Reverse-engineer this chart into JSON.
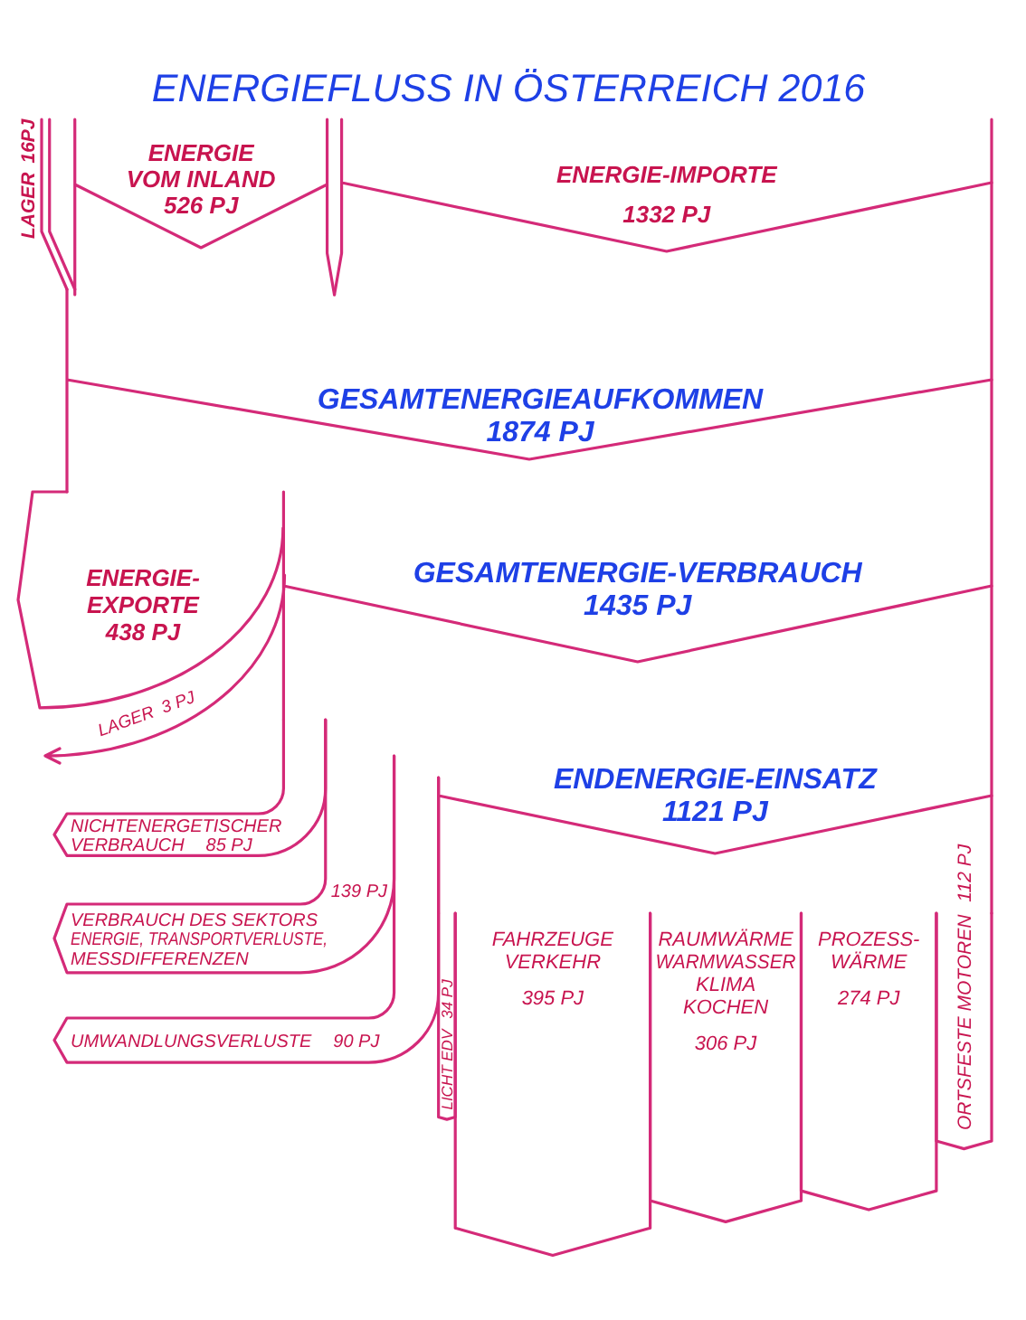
{
  "chart_data": {
    "type": "other",
    "title": "ENERGIEFLUSS IN ÖSTERREICH 2016",
    "categories": [
      "LAGER",
      "ENERGIE VOM INLAND",
      "ENERGIE-IMPORTE",
      "GESAMTENERGIEAUFKOMMEN",
      "ENERGIE-EXPORTE",
      "LAGER",
      "GESAMTENERGIE-VERBRAUCH",
      "NICHTENERGETISCHER VERBRAUCH",
      "VERBRAUCH DES SEKTORS ENERGIE, TRANSPORTVERLUSTE, MESSDIFFERENZEN",
      "UMWANDLUNGSVERLUSTE",
      "ENDENERGIE-EINSATZ",
      "LICHT EDV",
      "FAHRZEUGE VERKEHR",
      "RAUMWÄRME WARMWASSER KLIMA KOCHEN",
      "PROZESS-WÄRME",
      "ORTSFESTE MOTOREN"
    ],
    "values": [
      16,
      526,
      1332,
      1874,
      438,
      3,
      1435,
      85,
      139,
      90,
      1121,
      34,
      395,
      306,
      274,
      112
    ],
    "value_labels": [
      "16PJ",
      "526 PJ",
      "1332 PJ",
      "1874 PJ",
      "438 PJ",
      "3 PJ",
      "1435 PJ",
      "85 PJ",
      "139 PJ",
      "90 PJ",
      "1121 PJ",
      "34 PJ",
      "395 PJ",
      "306 PJ",
      "274 PJ",
      "112 PJ"
    ],
    "colors": [
      "#c8144f",
      "#c8144f",
      "#c8144f",
      "#1e40e6",
      "#c8144f",
      "#c8144f",
      "#1e40e6",
      "#c8144f",
      "#c8144f",
      "#c8144f",
      "#1e40e6",
      "#c8144f",
      "#c8144f",
      "#c8144f",
      "#c8144f",
      "#c8144f"
    ],
    "color": "#d42a78"
  }
}
